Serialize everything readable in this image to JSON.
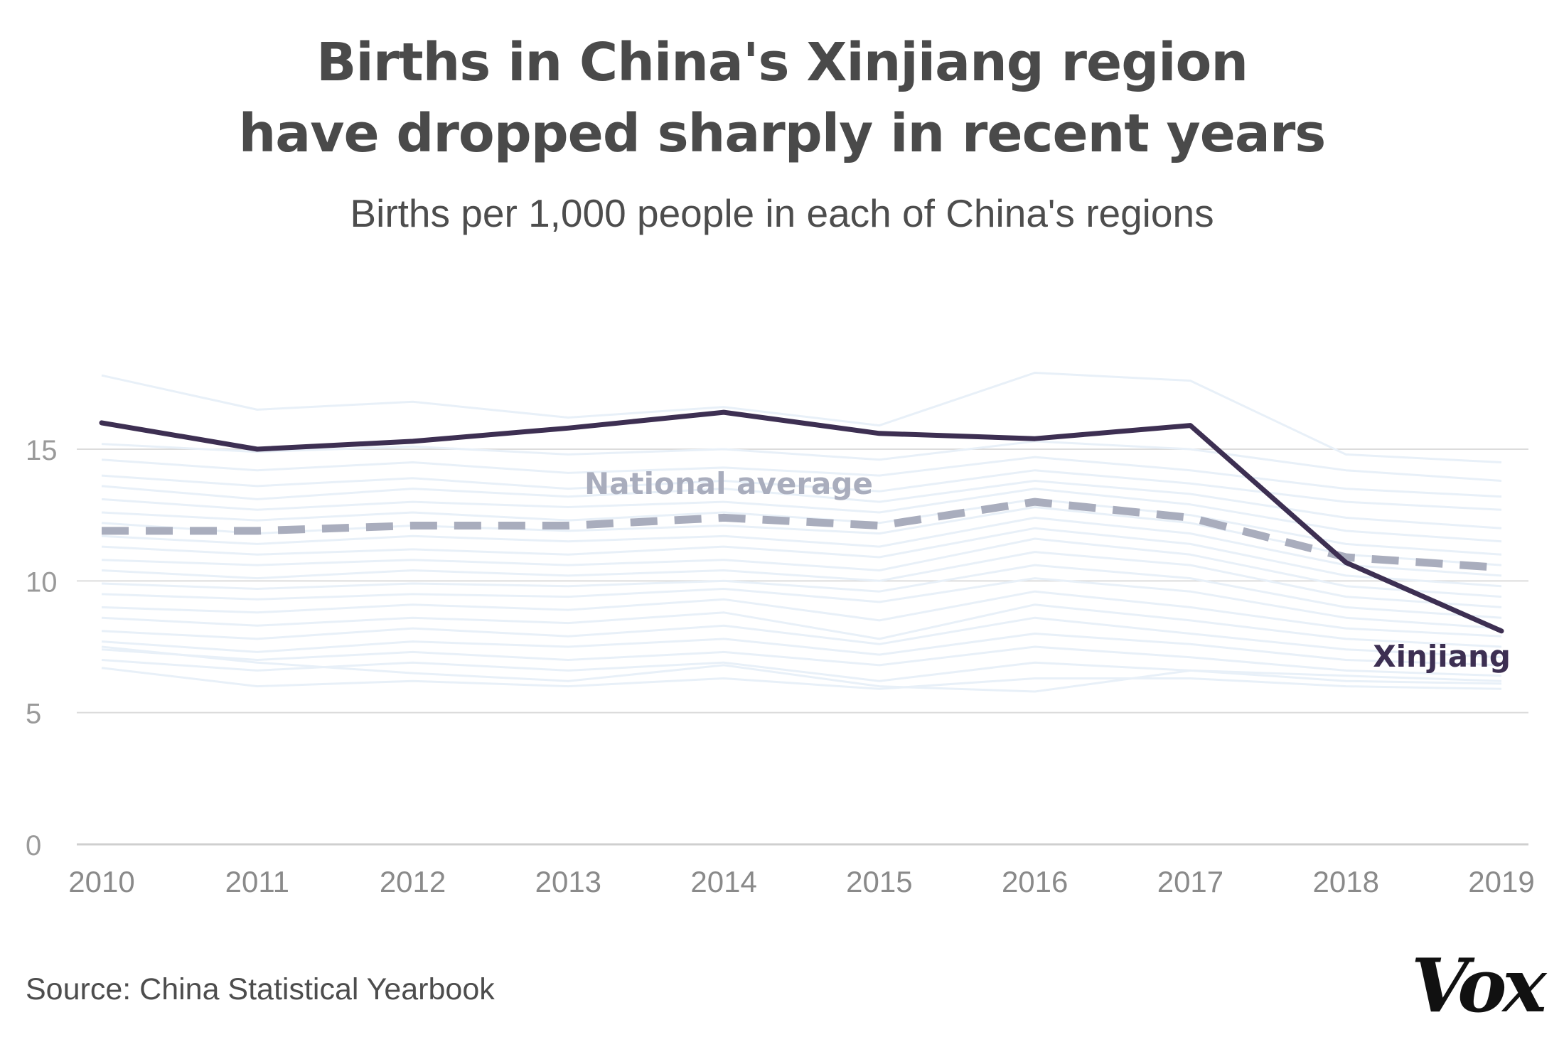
{
  "header": {
    "title_line1": "Births in China's Xinjiang region",
    "title_line2": "have dropped sharply in recent years",
    "subtitle": "Births per 1,000 people in each of China's regions"
  },
  "footer": {
    "source": "Source: China Statistical Yearbook",
    "logo": "Vox"
  },
  "colors": {
    "xinjiang": "#3d2f52",
    "national": "#a9adbd",
    "regions": "#e8f0f8",
    "grid": "#dcdcdc",
    "axis_text": "#9a9a9a",
    "title": "#4a4a4a"
  },
  "chart_data": {
    "type": "line",
    "title": "Births in China's Xinjiang region have dropped sharply in recent years",
    "subtitle": "Births per 1,000 people in each of China's regions",
    "xlabel": "",
    "ylabel": "",
    "x": [
      2010,
      2011,
      2012,
      2013,
      2014,
      2015,
      2016,
      2017,
      2018,
      2019
    ],
    "ylim": [
      0,
      18
    ],
    "yticks": [
      0,
      5,
      10,
      15
    ],
    "grid": true,
    "series": [
      {
        "name": "Xinjiang",
        "values": [
          16.0,
          15.0,
          15.3,
          15.8,
          16.4,
          15.6,
          15.4,
          15.9,
          10.7,
          8.1
        ],
        "style": "solid",
        "label": "Xinjiang"
      },
      {
        "name": "National average",
        "values": [
          11.9,
          11.9,
          12.1,
          12.1,
          12.4,
          12.1,
          13.0,
          12.4,
          10.9,
          10.5
        ],
        "style": "dashed",
        "label": "National average"
      }
    ],
    "background_series": [
      {
        "values": [
          17.8,
          16.5,
          16.8,
          16.2,
          16.6,
          15.9,
          17.9,
          17.6,
          14.8,
          14.5
        ]
      },
      {
        "values": [
          15.2,
          14.9,
          15.1,
          14.8,
          15.0,
          14.6,
          15.3,
          15.0,
          14.2,
          13.8
        ]
      },
      {
        "values": [
          14.6,
          14.2,
          14.5,
          14.1,
          14.3,
          14.0,
          14.7,
          14.2,
          13.5,
          13.2
        ]
      },
      {
        "values": [
          14.0,
          13.6,
          13.9,
          13.5,
          13.8,
          13.4,
          14.2,
          13.7,
          13.0,
          12.7
        ]
      },
      {
        "values": [
          13.6,
          13.1,
          13.5,
          13.2,
          13.5,
          13.0,
          13.8,
          13.3,
          12.4,
          12.0
        ]
      },
      {
        "values": [
          13.1,
          12.7,
          13.0,
          12.8,
          13.0,
          12.6,
          13.5,
          12.9,
          11.9,
          11.5
        ]
      },
      {
        "values": [
          12.6,
          12.3,
          12.6,
          12.3,
          12.6,
          12.2,
          13.1,
          12.5,
          11.4,
          11.0
        ]
      },
      {
        "values": [
          12.2,
          11.8,
          12.1,
          11.9,
          12.1,
          11.8,
          12.8,
          12.2,
          11.0,
          10.6
        ]
      },
      {
        "values": [
          11.7,
          11.4,
          11.7,
          11.5,
          11.7,
          11.3,
          12.4,
          11.8,
          10.6,
          10.2
        ]
      },
      {
        "values": [
          11.3,
          11.0,
          11.2,
          11.0,
          11.3,
          10.9,
          12.0,
          11.4,
          10.2,
          9.8
        ]
      },
      {
        "values": [
          10.8,
          10.6,
          10.8,
          10.6,
          10.8,
          10.4,
          11.6,
          11.0,
          9.8,
          9.4
        ]
      },
      {
        "values": [
          10.4,
          10.1,
          10.4,
          10.2,
          10.4,
          10.0,
          11.1,
          10.6,
          9.4,
          9.0
        ]
      },
      {
        "values": [
          9.9,
          9.7,
          9.9,
          9.8,
          10.0,
          9.6,
          10.6,
          10.1,
          9.0,
          8.6
        ]
      },
      {
        "values": [
          9.5,
          9.3,
          9.5,
          9.4,
          9.7,
          9.2,
          10.1,
          9.6,
          8.6,
          8.2
        ]
      },
      {
        "values": [
          9.0,
          8.8,
          9.1,
          8.9,
          9.3,
          8.5,
          9.6,
          9.0,
          8.2,
          7.9
        ]
      },
      {
        "values": [
          8.6,
          8.3,
          8.6,
          8.4,
          8.8,
          7.8,
          9.1,
          8.5,
          7.8,
          7.5
        ]
      },
      {
        "values": [
          8.1,
          7.8,
          8.2,
          7.9,
          8.3,
          7.6,
          8.6,
          8.0,
          7.4,
          7.1
        ]
      },
      {
        "values": [
          7.7,
          7.3,
          7.7,
          7.5,
          7.8,
          7.2,
          8.0,
          7.6,
          7.0,
          6.8
        ]
      },
      {
        "values": [
          7.4,
          7.0,
          7.3,
          7.0,
          7.3,
          6.8,
          7.5,
          7.1,
          6.6,
          6.4
        ]
      },
      {
        "values": [
          7.0,
          6.6,
          6.9,
          6.6,
          6.9,
          6.2,
          6.9,
          6.6,
          6.2,
          6.1
        ]
      },
      {
        "values": [
          6.7,
          6.0,
          6.2,
          6.0,
          6.3,
          5.9,
          6.3,
          6.3,
          6.0,
          5.9
        ]
      },
      {
        "values": [
          7.5,
          6.9,
          6.5,
          6.2,
          6.8,
          6.0,
          5.8,
          6.6,
          6.4,
          6.2
        ]
      }
    ]
  }
}
